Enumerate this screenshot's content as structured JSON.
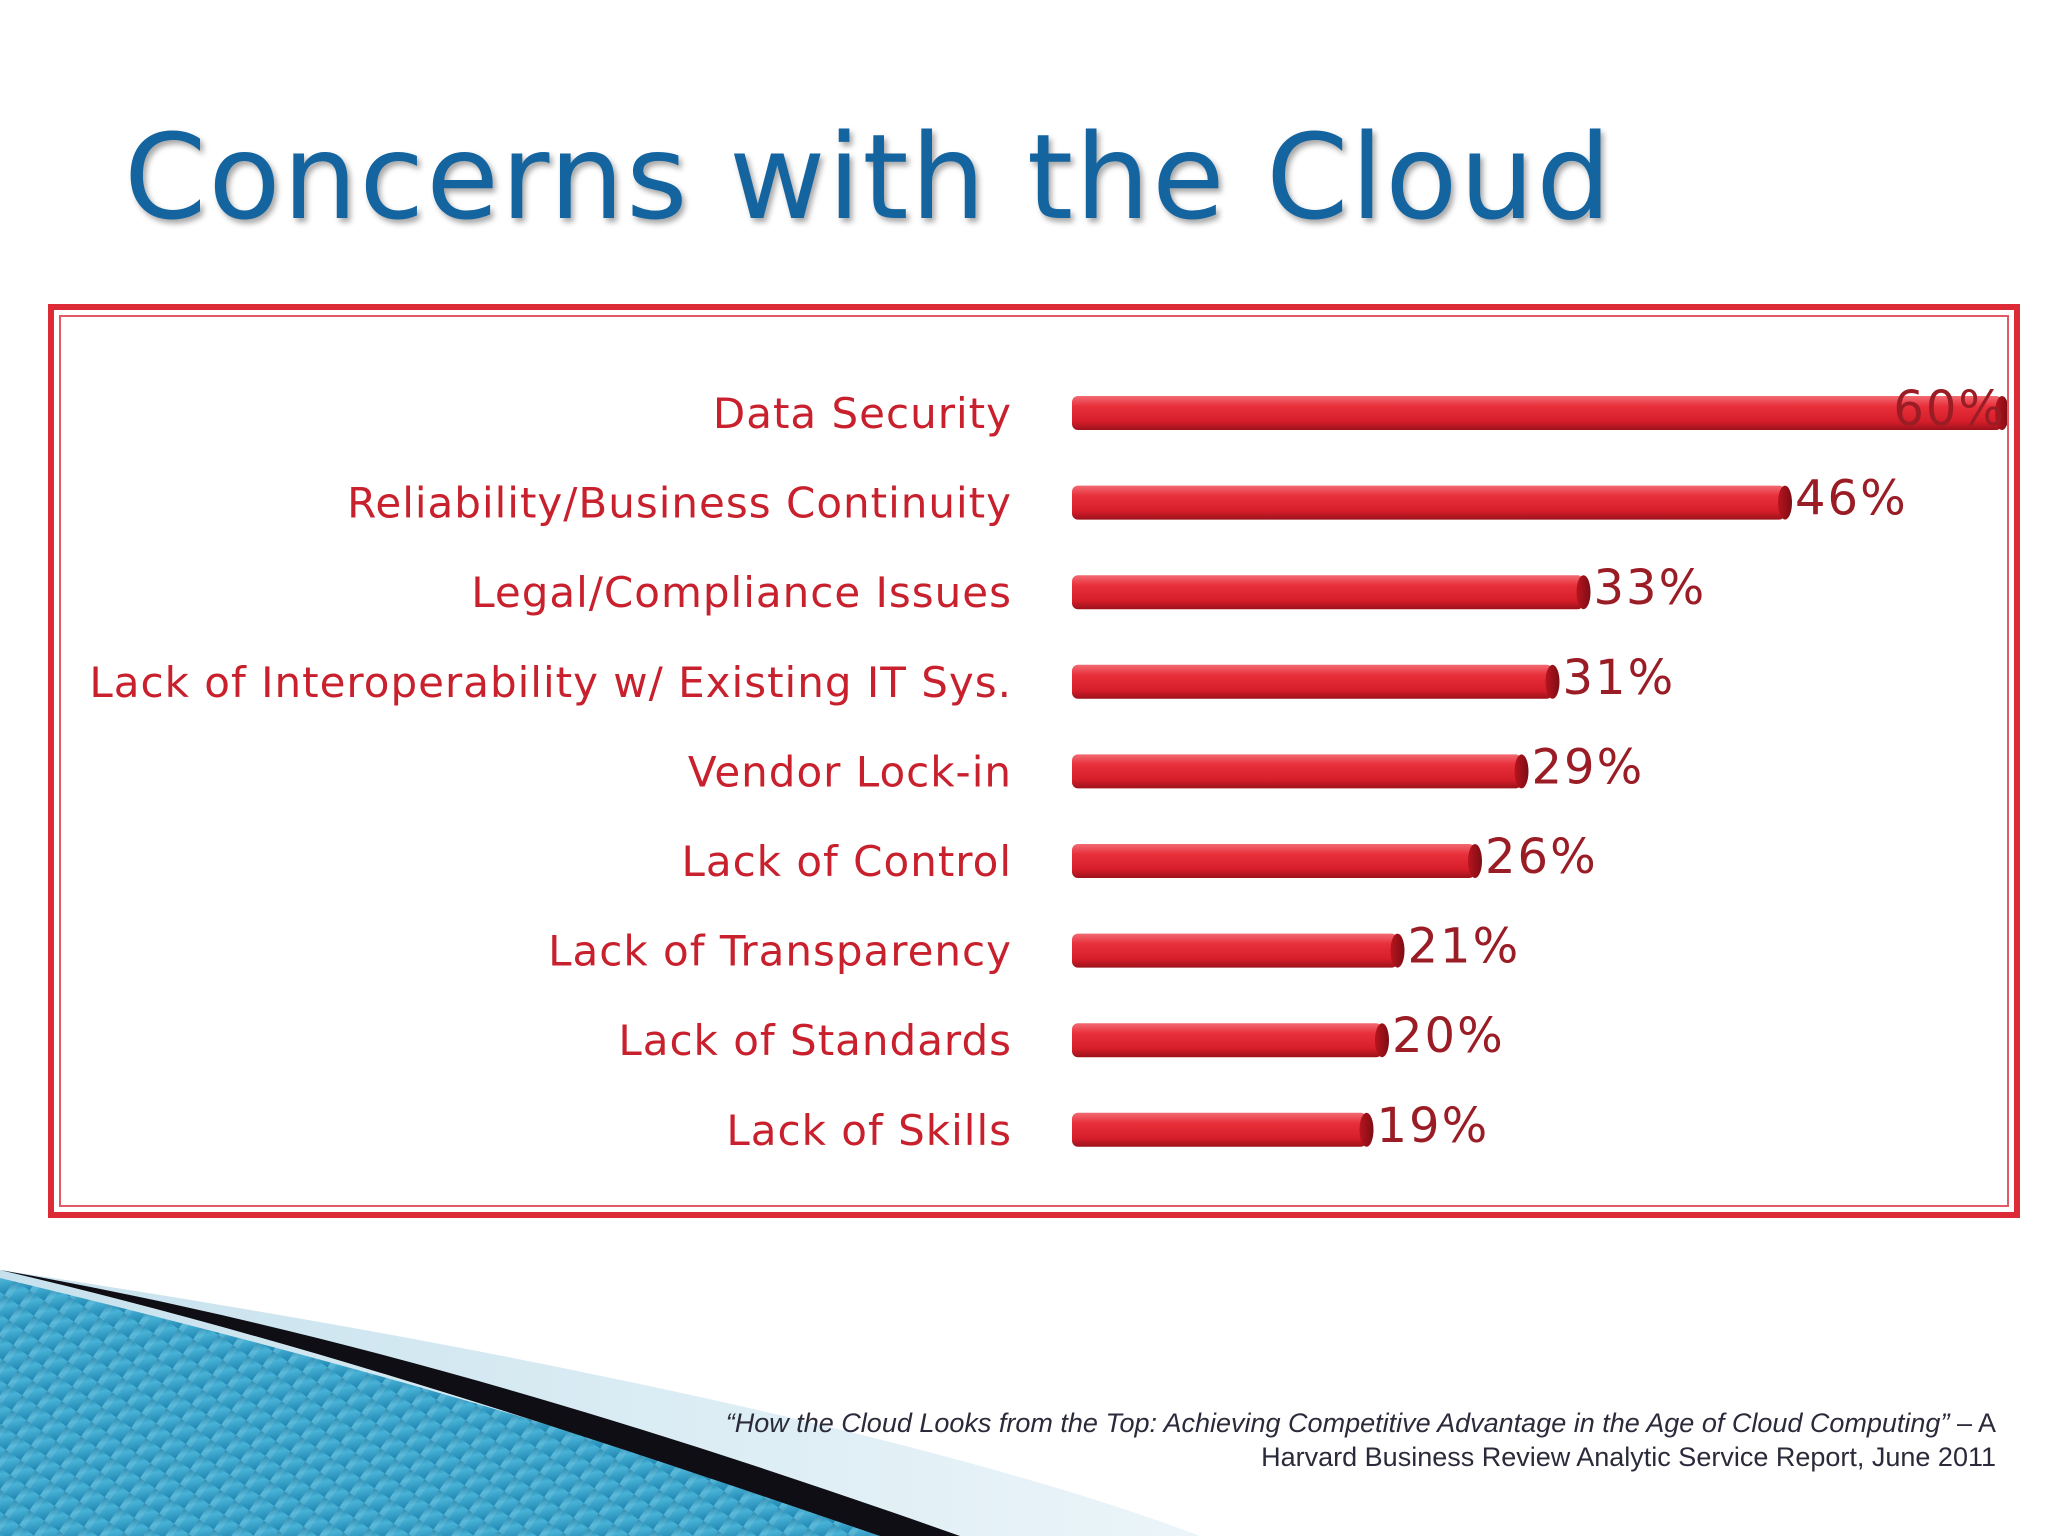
{
  "slide": {
    "title": "Concerns with the Cloud"
  },
  "source": {
    "italic_part": "“How the Cloud Looks from the Top:  Achieving Competitive Advantage in the Age of Cloud Computing”",
    "plain_part": " – A Harvard Business Review Analytic Service Report, June 2011"
  },
  "colors": {
    "bar": "#e0222e",
    "title": "#1464a0",
    "frame": "#dc2a36",
    "label": "#c8202c"
  },
  "chart_data": {
    "type": "bar",
    "orientation": "horizontal",
    "categories": [
      "Data Security",
      "Reliability/Business Continuity",
      "Legal/Compliance Issues",
      "Lack of Interoperability w/ Existing IT Sys.",
      "Vendor Lock-in",
      "Lack of Control",
      "Lack of Transparency",
      "Lack of Standards",
      "Lack of Skills"
    ],
    "values": [
      60,
      46,
      33,
      31,
      29,
      26,
      21,
      20,
      19
    ],
    "value_labels": [
      "60%",
      "46%",
      "33%",
      "31%",
      "29%",
      "26%",
      "21%",
      "20%",
      "19%"
    ],
    "xlim": [
      0,
      60
    ],
    "grid": false,
    "legend": "none"
  }
}
